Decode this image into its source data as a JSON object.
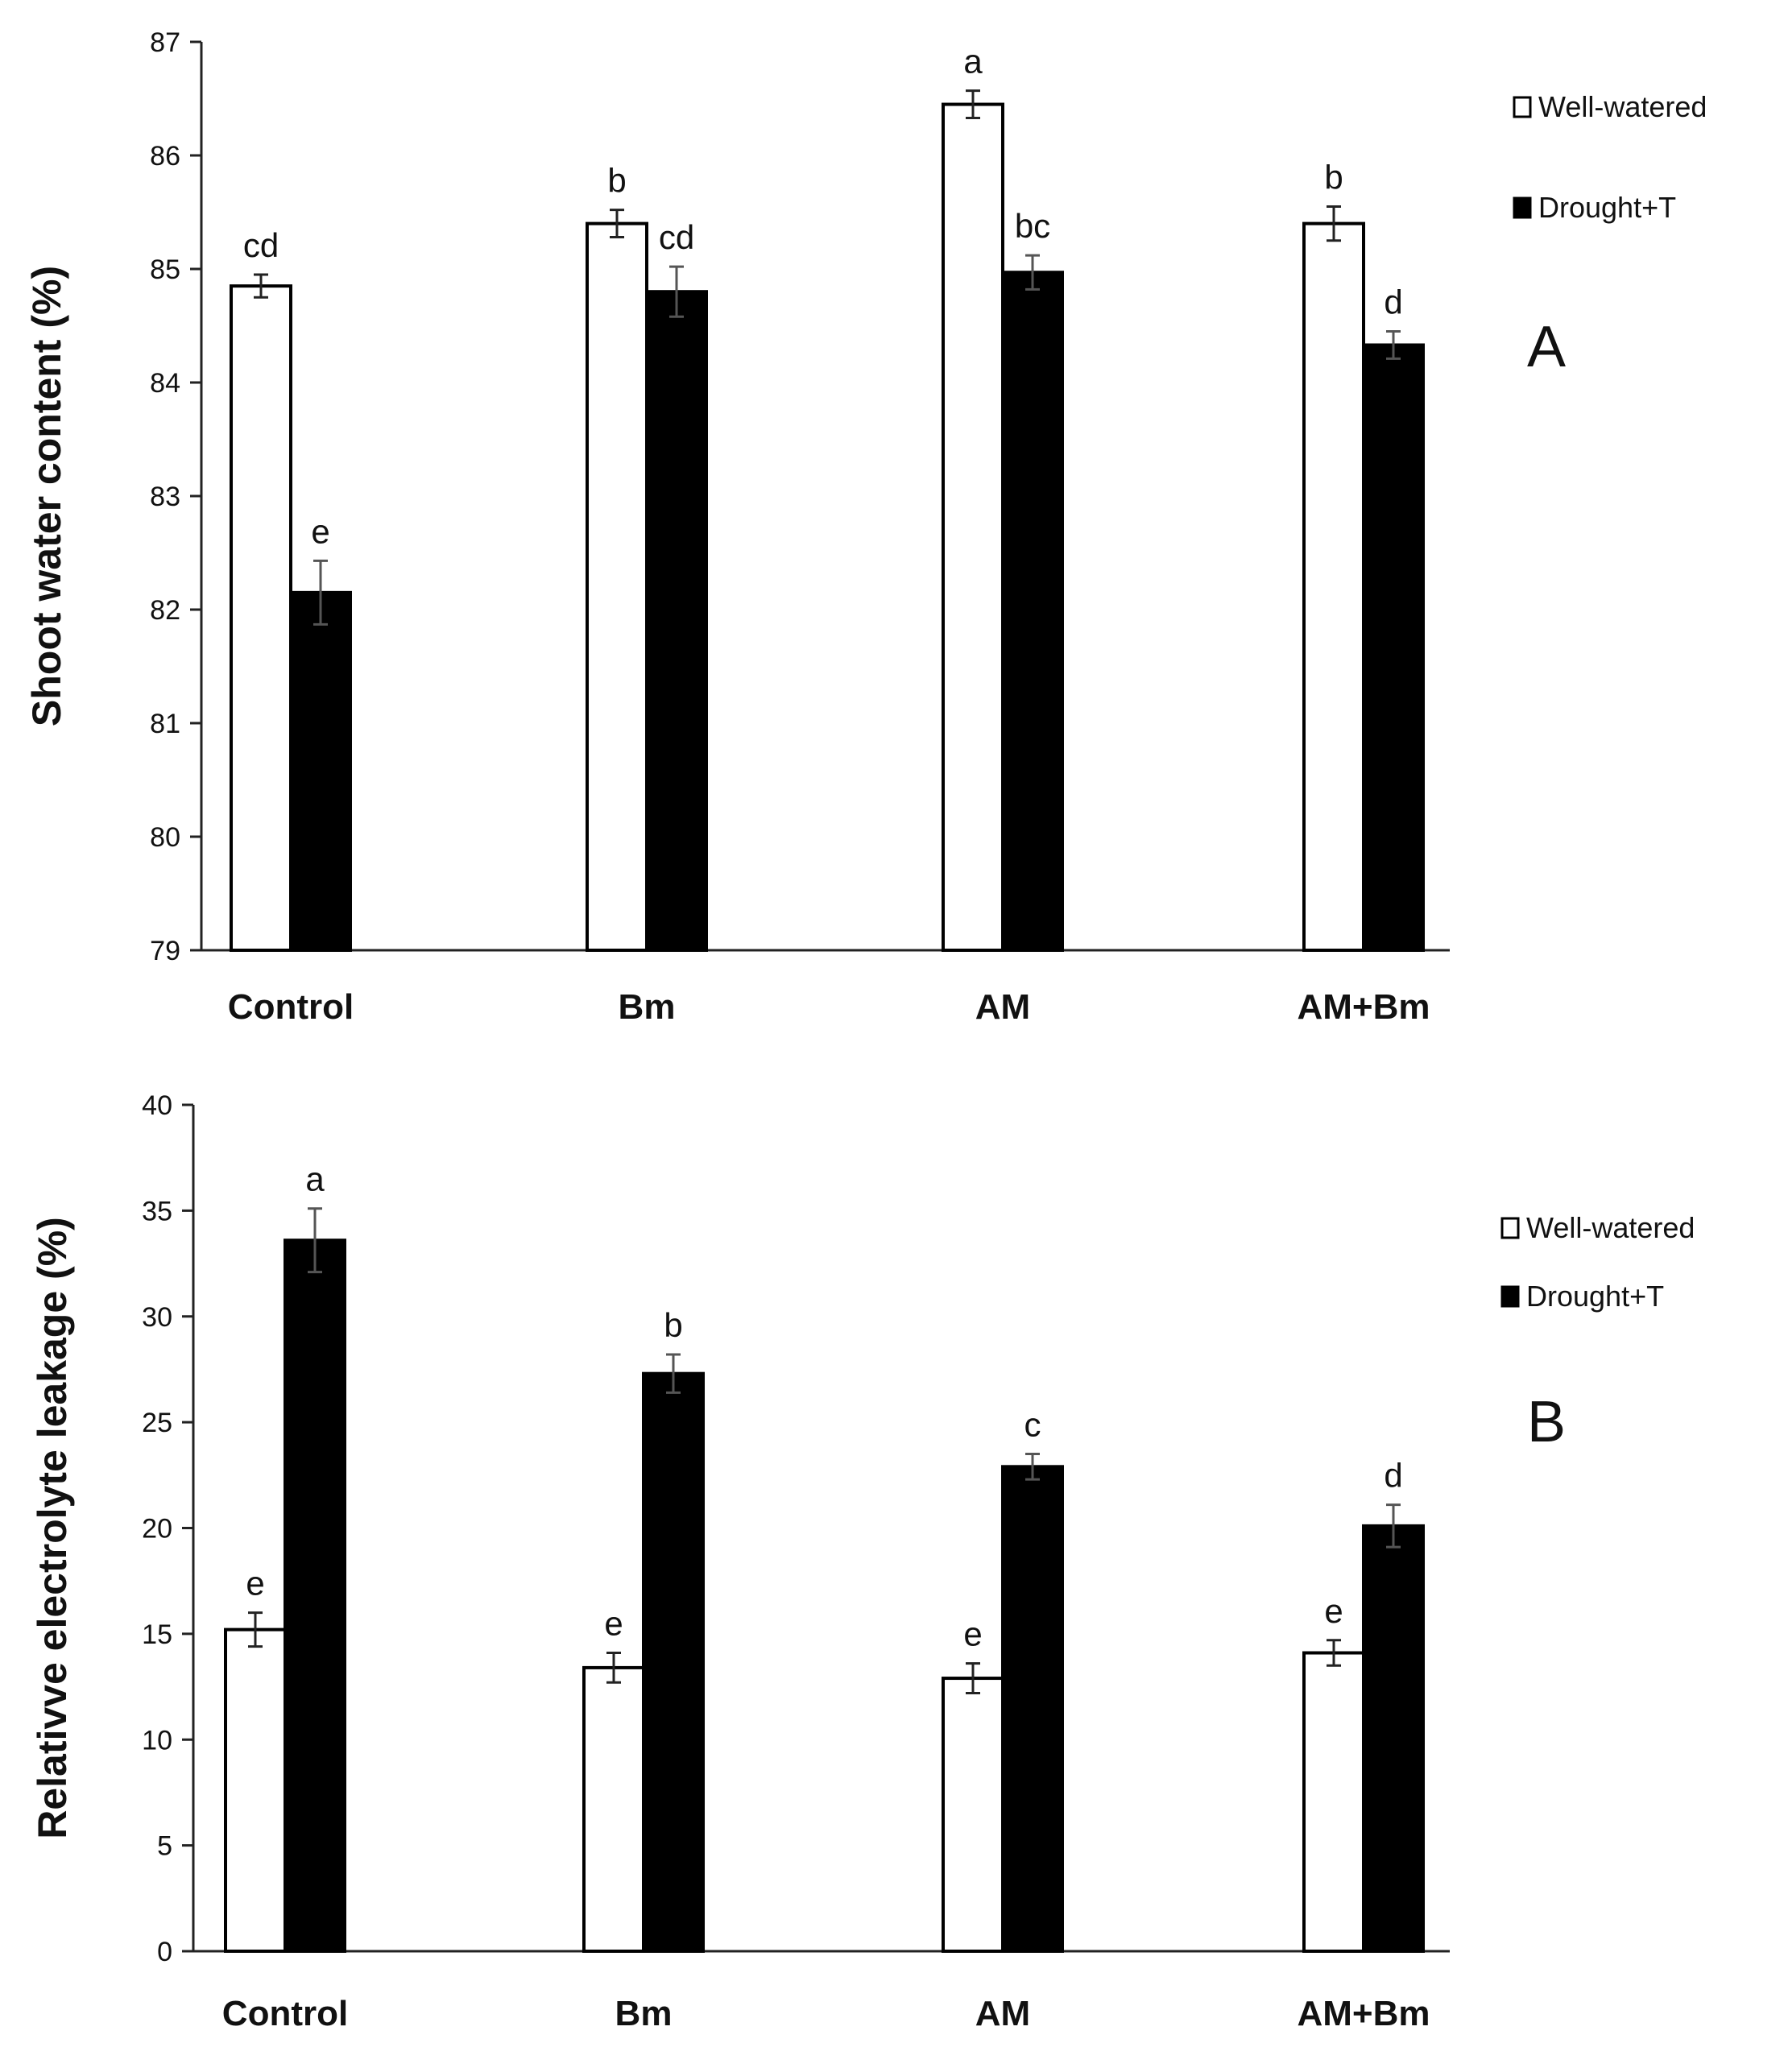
{
  "chart_data": [
    {
      "type": "bar",
      "panel": "A",
      "categories": [
        "Control",
        "Bm",
        "AM",
        "AM+Bm"
      ],
      "series": [
        {
          "name": "Well-watered",
          "color": "#ffffff",
          "values": [
            84.85,
            85.4,
            86.45,
            85.4
          ],
          "errors": [
            0.1,
            0.12,
            0.12,
            0.15
          ],
          "labels": [
            "cd",
            "b",
            "a",
            "b"
          ]
        },
        {
          "name": "Drought+T",
          "color": "#000000",
          "values": [
            82.15,
            84.8,
            84.97,
            84.33
          ],
          "errors": [
            0.28,
            0.22,
            0.15,
            0.12
          ],
          "labels": [
            "e",
            "cd",
            "bc",
            "d"
          ]
        }
      ],
      "title": "",
      "xlabel": "",
      "ylabel": "Shoot water content (%)",
      "ylim": [
        79,
        87
      ],
      "yticks": [
        "79",
        "80",
        "81",
        "82",
        "83",
        "84",
        "85",
        "86",
        "87"
      ],
      "legend": [
        "Well-watered",
        "Drought+T"
      ],
      "legend_position": "right"
    },
    {
      "type": "bar",
      "panel": "B",
      "categories": [
        "Control",
        "Bm",
        "AM",
        "AM+Bm"
      ],
      "series": [
        {
          "name": "Well-watered",
          "color": "#ffffff",
          "values": [
            15.2,
            13.4,
            12.9,
            14.1
          ],
          "errors": [
            0.8,
            0.7,
            0.7,
            0.6
          ],
          "labels": [
            "e",
            "e",
            "e",
            "e"
          ]
        },
        {
          "name": "Drought+T",
          "color": "#000000",
          "values": [
            33.6,
            27.3,
            22.9,
            20.1
          ],
          "errors": [
            1.5,
            0.9,
            0.6,
            1.0
          ],
          "labels": [
            "a",
            "b",
            "c",
            "d"
          ]
        }
      ],
      "title": "",
      "xlabel": "",
      "ylabel": "Relativve electrolyte leakage (%)",
      "ylim": [
        0,
        40
      ],
      "yticks": [
        "0",
        "5",
        "10",
        "15",
        "20",
        "25",
        "30",
        "35",
        "40"
      ],
      "legend": [
        "Well-watered",
        "Drought+T"
      ],
      "legend_position": "right"
    }
  ],
  "panel_letters": [
    "A",
    "B"
  ]
}
